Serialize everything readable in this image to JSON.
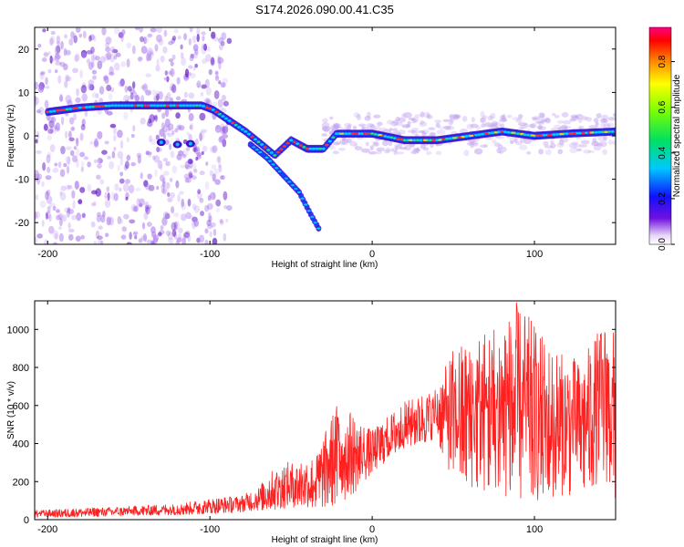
{
  "title": "S174.2026.090.00.41.C35",
  "chart_data": [
    {
      "type": "heatmap",
      "name": "spectrogram",
      "xlabel": "Height of straight line (km)",
      "ylabel": "Frequency (Hz)",
      "xlim": [
        -208,
        150
      ],
      "ylim": [
        -25,
        25
      ],
      "xticks": [
        -200,
        -100,
        0,
        100
      ],
      "xtick_labels": [
        "-200",
        "-100",
        "0",
        "100"
      ],
      "yticks": [
        -20,
        -10,
        0,
        10,
        20
      ],
      "ytick_labels": [
        "-20",
        "-10",
        "0",
        "10",
        "20"
      ],
      "ridge_trace": [
        {
          "x": -200,
          "y": 5.5
        },
        {
          "x": -180,
          "y": 6.5
        },
        {
          "x": -160,
          "y": 7
        },
        {
          "x": -140,
          "y": 7
        },
        {
          "x": -120,
          "y": 7
        },
        {
          "x": -105,
          "y": 7
        },
        {
          "x": -98,
          "y": 6
        },
        {
          "x": -88,
          "y": 3.5
        },
        {
          "x": -78,
          "y": 1
        },
        {
          "x": -68,
          "y": -2
        },
        {
          "x": -60,
          "y": -4.5
        },
        {
          "x": -50,
          "y": -1
        },
        {
          "x": -40,
          "y": -3
        },
        {
          "x": -30,
          "y": -3
        },
        {
          "x": -22,
          "y": 0.5
        },
        {
          "x": 0,
          "y": 0.5
        },
        {
          "x": 20,
          "y": -1
        },
        {
          "x": 40,
          "y": -1
        },
        {
          "x": 60,
          "y": 0
        },
        {
          "x": 80,
          "y": 1
        },
        {
          "x": 100,
          "y": 0
        },
        {
          "x": 120,
          "y": 0.5
        },
        {
          "x": 150,
          "y": 1
        }
      ],
      "secondary_trace": [
        {
          "x": -75,
          "y": -2
        },
        {
          "x": -65,
          "y": -5
        },
        {
          "x": -55,
          "y": -9
        },
        {
          "x": -45,
          "y": -13
        },
        {
          "x": -38,
          "y": -18
        },
        {
          "x": -32,
          "y": -22
        }
      ],
      "colorbar": {
        "label": "Normalized spectral amplitude",
        "range": [
          0,
          0.95
        ],
        "ticks": [
          0.0,
          0.2,
          0.4,
          0.6,
          0.8
        ],
        "tick_labels": [
          "0.0",
          "0.2",
          "0.4",
          "0.6",
          "0.8"
        ]
      }
    },
    {
      "type": "line",
      "name": "snr",
      "xlabel": "Height of straight line (km)",
      "ylabel": "SNR (10 * v/v)",
      "xlim": [
        -208,
        150
      ],
      "ylim": [
        0,
        1150
      ],
      "xticks": [
        -200,
        -100,
        0,
        100
      ],
      "xtick_labels": [
        "-200",
        "-100",
        "0",
        "100"
      ],
      "yticks": [
        0,
        200,
        400,
        600,
        800,
        1000
      ],
      "ytick_labels": [
        "0",
        "200",
        "400",
        "600",
        "800",
        "1000"
      ],
      "series": [
        {
          "name": "SNR",
          "color": "#ff2020",
          "envelope": [
            {
              "x": -208,
              "lo": 10,
              "hi": 50
            },
            {
              "x": -180,
              "lo": 15,
              "hi": 60
            },
            {
              "x": -150,
              "lo": 20,
              "hi": 70
            },
            {
              "x": -120,
              "lo": 25,
              "hi": 85
            },
            {
              "x": -100,
              "lo": 30,
              "hi": 110
            },
            {
              "x": -80,
              "lo": 40,
              "hi": 130
            },
            {
              "x": -70,
              "lo": 50,
              "hi": 170
            },
            {
              "x": -60,
              "lo": 50,
              "hi": 280
            },
            {
              "x": -45,
              "lo": 70,
              "hi": 320
            },
            {
              "x": -35,
              "lo": 60,
              "hi": 330
            },
            {
              "x": -20,
              "lo": 80,
              "hi": 650
            },
            {
              "x": -10,
              "lo": 150,
              "hi": 530
            },
            {
              "x": 0,
              "lo": 250,
              "hi": 470
            },
            {
              "x": 20,
              "lo": 380,
              "hi": 620
            },
            {
              "x": 40,
              "lo": 420,
              "hi": 700
            },
            {
              "x": 50,
              "lo": 200,
              "hi": 900
            },
            {
              "x": 70,
              "lo": 150,
              "hi": 1000
            },
            {
              "x": 90,
              "lo": 100,
              "hi": 1150
            },
            {
              "x": 110,
              "lo": 100,
              "hi": 900
            },
            {
              "x": 130,
              "lo": 150,
              "hi": 850
            },
            {
              "x": 145,
              "lo": 200,
              "hi": 1100
            },
            {
              "x": 150,
              "lo": 100,
              "hi": 950
            }
          ]
        }
      ]
    }
  ]
}
